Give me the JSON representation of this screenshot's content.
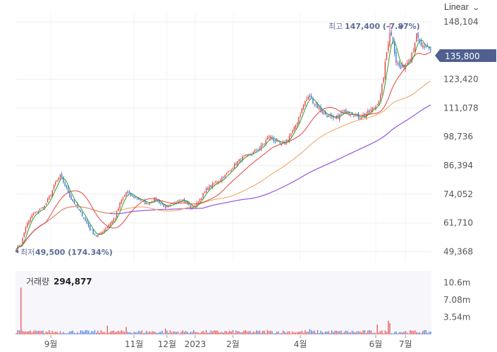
{
  "toolbar": {
    "scale_label": "Linear",
    "scale_chevron": "chevron-down-icon"
  },
  "colors": {
    "up": "#e23b3b",
    "down": "#3a6fd8",
    "ma5": "#2ca12c",
    "ma20": "#e0463c",
    "ma60": "#f0a05a",
    "ma120": "#9a62e0",
    "price_tag": "#4f5f8f",
    "grid": "#eeeeee"
  },
  "chart_data": [
    {
      "type": "candlestick",
      "yaxis_ticks": [
        "148,104",
        "135,800",
        "123,420",
        "111,078",
        "98,736",
        "86,394",
        "74,052",
        "61,710",
        "49,368"
      ],
      "y_tick_values": [
        148104,
        123420,
        111078,
        98736,
        86394,
        74052,
        61710,
        49368
      ],
      "ylim": [
        45000,
        152000
      ],
      "current_price": {
        "label": "135,800",
        "value": 135800
      },
      "high_marker": {
        "prefix": "최고",
        "value_label": "147,400 (-7.87%)",
        "value": 147400
      },
      "low_marker": {
        "prefix": "최저",
        "value_label": "49,500 (174.34%)",
        "value": 49500
      },
      "xaxis_ticks": [
        "9월",
        "11월",
        "12월",
        "2023",
        "2월",
        "4월",
        "6월",
        "7월"
      ],
      "x_tick_positions": [
        22,
        75,
        96,
        114,
        138,
        181,
        229,
        248
      ],
      "n_points": 265,
      "close_anchors": [
        [
          0,
          51000
        ],
        [
          3,
          52500
        ],
        [
          6,
          60000
        ],
        [
          10,
          65000
        ],
        [
          14,
          67000
        ],
        [
          18,
          69000
        ],
        [
          22,
          74000
        ],
        [
          25,
          79000
        ],
        [
          28,
          82000
        ],
        [
          31,
          78000
        ],
        [
          35,
          72000
        ],
        [
          39,
          68000
        ],
        [
          43,
          64000
        ],
        [
          47,
          59000
        ],
        [
          51,
          56000
        ],
        [
          55,
          58000
        ],
        [
          59,
          61000
        ],
        [
          63,
          64000
        ],
        [
          66,
          70000
        ],
        [
          70,
          75000
        ],
        [
          74,
          73000
        ],
        [
          78,
          72000
        ],
        [
          83,
          70000
        ],
        [
          88,
          72000
        ],
        [
          92,
          70000
        ],
        [
          96,
          68000
        ],
        [
          100,
          70000
        ],
        [
          104,
          72000
        ],
        [
          108,
          71000
        ],
        [
          111,
          68000
        ],
        [
          114,
          69000
        ],
        [
          117,
          72000
        ],
        [
          121,
          76000
        ],
        [
          125,
          78000
        ],
        [
          129,
          80000
        ],
        [
          133,
          82000
        ],
        [
          137,
          85000
        ],
        [
          141,
          88000
        ],
        [
          145,
          90000
        ],
        [
          149,
          91000
        ],
        [
          153,
          93000
        ],
        [
          157,
          95000
        ],
        [
          161,
          99000
        ],
        [
          165,
          97000
        ],
        [
          169,
          95000
        ],
        [
          173,
          98000
        ],
        [
          177,
          102000
        ],
        [
          181,
          109000
        ],
        [
          184,
          114000
        ],
        [
          187,
          116000
        ],
        [
          190,
          113000
        ],
        [
          194,
          110000
        ],
        [
          198,
          108000
        ],
        [
          202,
          106000
        ],
        [
          206,
          108000
        ],
        [
          210,
          110000
        ],
        [
          214,
          109000
        ],
        [
          218,
          107000
        ],
        [
          222,
          108000
        ],
        [
          226,
          110000
        ],
        [
          229,
          112000
        ],
        [
          232,
          116000
        ],
        [
          234,
          125000
        ],
        [
          236,
          135000
        ],
        [
          238,
          144000
        ],
        [
          240,
          140000
        ],
        [
          242,
          131000
        ],
        [
          245,
          128000
        ],
        [
          248,
          130000
        ],
        [
          251,
          133000
        ],
        [
          253,
          137000
        ],
        [
          255,
          142000
        ],
        [
          257,
          139000
        ],
        [
          260,
          136000
        ],
        [
          262,
          137000
        ],
        [
          264,
          135800
        ]
      ],
      "indicators": [
        "MA5",
        "MA20",
        "MA60",
        "MA120"
      ]
    },
    {
      "type": "bar",
      "title": "거래량",
      "current_value_label": "294,877",
      "yaxis_ticks": [
        "10.6m",
        "7.08m",
        "3.54m"
      ],
      "y_tick_values": [
        10600000,
        7080000,
        3540000
      ],
      "ylim": [
        0,
        13000000
      ],
      "spikes": [
        [
          3,
          9600000
        ],
        [
          58,
          1800000
        ],
        [
          70,
          1500000
        ],
        [
          95,
          1200000
        ],
        [
          160,
          900000
        ],
        [
          187,
          1100000
        ],
        [
          230,
          2000000
        ],
        [
          237,
          2800000
        ],
        [
          238,
          2300000
        ]
      ],
      "base_volume": 500000
    }
  ]
}
